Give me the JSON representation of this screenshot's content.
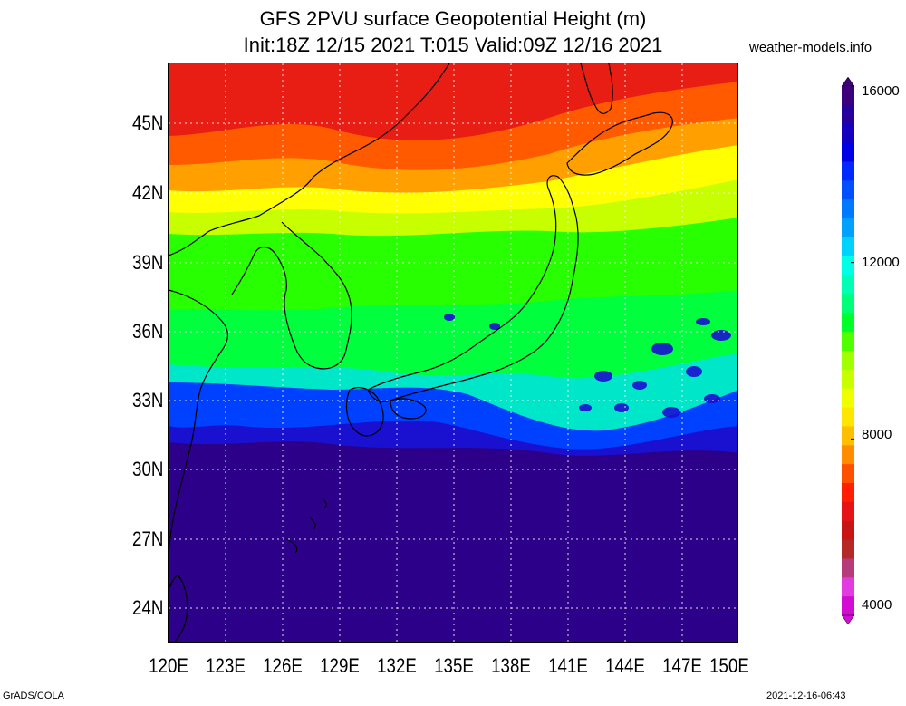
{
  "title_line1": "GFS 2PVU surface Geopotential Height (m)",
  "title_line2": "Init:18Z 12/15 2021 T:015 Valid:09Z 12/16 2021",
  "site": "weather-models.info",
  "footer_left": "GrADS/COLA",
  "footer_right": "2021-12-16-06:43",
  "lat_labels": [
    "45N",
    "42N",
    "39N",
    "36N",
    "33N",
    "30N",
    "27N",
    "24N"
  ],
  "lon_labels": [
    "120E",
    "123E",
    "126E",
    "129E",
    "132E",
    "135E",
    "138E",
    "141E",
    "144E",
    "147E",
    "150E"
  ],
  "colorbar": {
    "labels": [
      "16000",
      "12000",
      "8000",
      "4000"
    ],
    "colors": [
      "#d20cd2",
      "#e03ce0",
      "#b43c78",
      "#b42828",
      "#c81414",
      "#e61414",
      "#ff1e00",
      "#ff5000",
      "#ff8c00",
      "#ffbe00",
      "#ffe600",
      "#f0ff00",
      "#c8ff00",
      "#a0ff00",
      "#50ff00",
      "#00ff28",
      "#00ff78",
      "#00ffb4",
      "#00ffe6",
      "#00d2ff",
      "#00a0ff",
      "#0078ff",
      "#0050ff",
      "#0028ff",
      "#0000e6",
      "#1400be",
      "#28009b",
      "#3c0078"
    ]
  },
  "bands": [
    {
      "name": "red",
      "color": "#e81e14"
    },
    {
      "name": "orange-red",
      "color": "#ff5a00"
    },
    {
      "name": "orange",
      "color": "#ffa000"
    },
    {
      "name": "yellow",
      "color": "#ffff00"
    },
    {
      "name": "yellow-green",
      "color": "#c8ff00"
    },
    {
      "name": "green",
      "color": "#28ff00"
    },
    {
      "name": "bright-green",
      "color": "#00ff3c"
    },
    {
      "name": "cyan",
      "color": "#00e6c8"
    },
    {
      "name": "blue",
      "color": "#0040ff"
    },
    {
      "name": "deep-blue",
      "color": "#1a10d0"
    },
    {
      "name": "indigo",
      "color": "#2c0088"
    }
  ]
}
